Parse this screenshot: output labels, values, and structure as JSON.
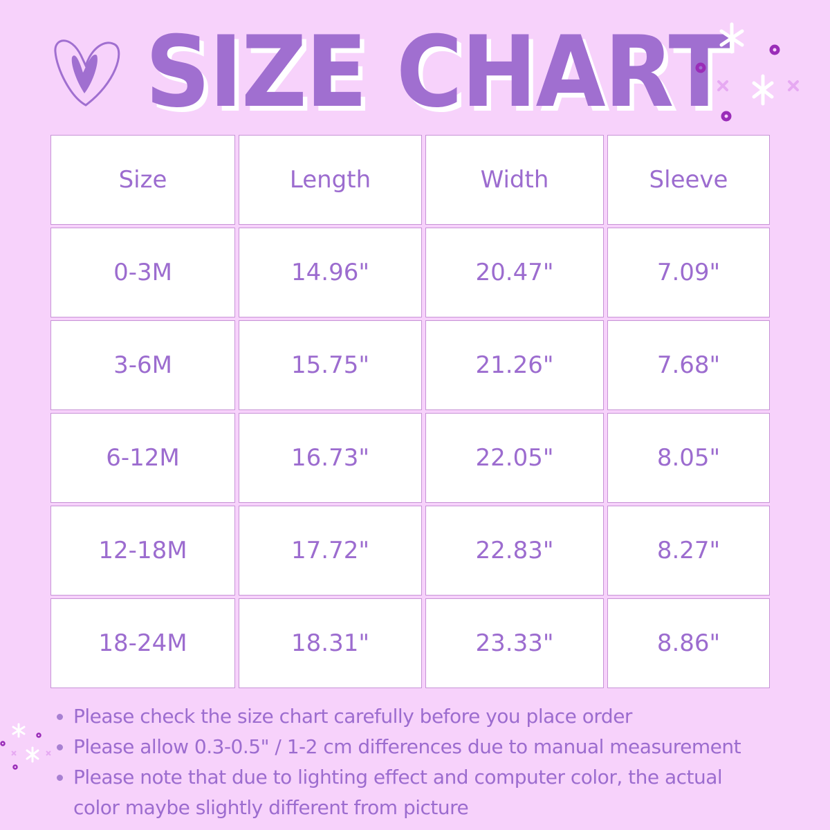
{
  "title": "SIZE CHART",
  "table": {
    "headers": [
      "Size",
      "Length",
      "Width",
      "Sleeve"
    ],
    "rows": [
      [
        "0-3M",
        "14.96\"",
        "20.47\"",
        "7.09\""
      ],
      [
        "3-6M",
        "15.75\"",
        "21.26\"",
        "7.68\""
      ],
      [
        "6-12M",
        "16.73\"",
        "22.05\"",
        "8.05\""
      ],
      [
        "12-18M",
        "17.72\"",
        "22.83\"",
        "8.27\""
      ],
      [
        "18-24M",
        "18.31\"",
        "23.33\"",
        "8.86\""
      ]
    ]
  },
  "notes": [
    "Please check the size chart carefully before you place order",
    "Please allow 0.3-0.5\" / 1-2 cm differences due to manual measurement",
    "Please note that due to lighting effect and computer color, the actual color maybe slightly different from picture"
  ],
  "colors": {
    "background": "#f7d2fb",
    "text": "#9c6ccf",
    "cell_border": "#c793d6"
  }
}
